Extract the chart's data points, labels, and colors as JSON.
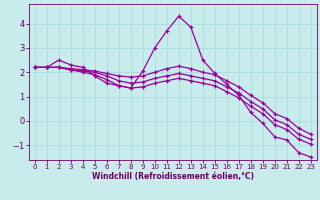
{
  "xlabel": "Windchill (Refroidissement éolien,°C)",
  "background_color": "#c8ecec",
  "grid_color": "#aadddd",
  "line_color": "#990099",
  "spine_color": "#660066",
  "xlim": [
    -0.5,
    23.5
  ],
  "ylim": [
    -1.6,
    4.8
  ],
  "xticks": [
    0,
    1,
    2,
    3,
    4,
    5,
    6,
    7,
    8,
    9,
    10,
    11,
    12,
    13,
    14,
    15,
    16,
    17,
    18,
    19,
    20,
    21,
    22,
    23
  ],
  "yticks": [
    -1,
    0,
    1,
    2,
    3,
    4
  ],
  "series": [
    {
      "x": [
        0,
        1,
        2,
        3,
        4,
        5,
        6,
        7,
        8,
        9,
        10,
        11,
        12,
        13,
        14,
        15,
        16,
        17,
        18,
        19,
        20,
        21,
        22,
        23
      ],
      "y": [
        2.2,
        2.2,
        2.5,
        2.3,
        2.2,
        1.85,
        1.55,
        1.45,
        1.35,
        2.05,
        3.0,
        3.7,
        4.3,
        3.85,
        2.5,
        1.95,
        1.5,
        1.05,
        0.35,
        -0.1,
        -0.65,
        -0.78,
        -1.3,
        -1.48
      ]
    },
    {
      "x": [
        0,
        1,
        2,
        3,
        4,
        5,
        6,
        7,
        8,
        9,
        10,
        11,
        12,
        13,
        14,
        15,
        16,
        17,
        18,
        19,
        20,
        21,
        22,
        23
      ],
      "y": [
        2.2,
        2.2,
        2.2,
        2.15,
        2.1,
        2.05,
        1.95,
        1.85,
        1.8,
        1.85,
        2.0,
        2.15,
        2.25,
        2.15,
        2.0,
        1.9,
        1.65,
        1.4,
        1.05,
        0.75,
        0.3,
        0.1,
        -0.3,
        -0.55
      ]
    },
    {
      "x": [
        0,
        1,
        2,
        3,
        4,
        5,
        6,
        7,
        8,
        9,
        10,
        11,
        12,
        13,
        14,
        15,
        16,
        17,
        18,
        19,
        20,
        21,
        22,
        23
      ],
      "y": [
        2.2,
        2.2,
        2.2,
        2.1,
        2.05,
        2.0,
        1.85,
        1.65,
        1.55,
        1.6,
        1.75,
        1.85,
        1.95,
        1.85,
        1.75,
        1.65,
        1.4,
        1.15,
        0.8,
        0.5,
        0.05,
        -0.15,
        -0.55,
        -0.75
      ]
    },
    {
      "x": [
        0,
        1,
        2,
        3,
        4,
        5,
        6,
        7,
        8,
        9,
        10,
        11,
        12,
        13,
        14,
        15,
        16,
        17,
        18,
        19,
        20,
        21,
        22,
        23
      ],
      "y": [
        2.2,
        2.2,
        2.2,
        2.1,
        2.0,
        1.9,
        1.7,
        1.45,
        1.35,
        1.4,
        1.55,
        1.65,
        1.75,
        1.65,
        1.55,
        1.45,
        1.2,
        0.95,
        0.6,
        0.3,
        -0.15,
        -0.35,
        -0.75,
        -0.95
      ]
    }
  ]
}
